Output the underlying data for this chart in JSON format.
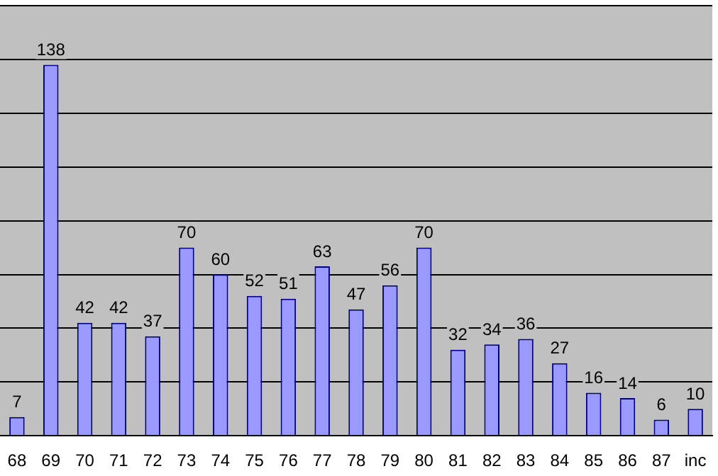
{
  "chart_data": {
    "type": "bar",
    "categories": [
      "68",
      "69",
      "70",
      "71",
      "72",
      "73",
      "74",
      "75",
      "76",
      "77",
      "78",
      "79",
      "80",
      "81",
      "82",
      "83",
      "84",
      "85",
      "86",
      "87",
      "inc"
    ],
    "values": [
      7,
      138,
      42,
      42,
      37,
      70,
      60,
      52,
      51,
      63,
      47,
      56,
      70,
      32,
      34,
      36,
      27,
      16,
      14,
      6,
      10
    ],
    "color": "#9999ff",
    "ylim": [
      0,
      160
    ],
    "yticks": [
      {
        "value": 0,
        "label": null
      },
      {
        "value": 20,
        "label": null
      },
      {
        "value": 40,
        "label": null
      },
      {
        "value": 60,
        "label": null
      },
      {
        "value": 80,
        "label": null
      },
      {
        "value": 100,
        "label": null
      },
      {
        "value": 120,
        "label": null
      },
      {
        "value": 140,
        "label": null
      },
      {
        "value": 160,
        "label": null
      }
    ],
    "grid": "y",
    "tick_labels": "x",
    "data_labels": true,
    "legend": false
  }
}
